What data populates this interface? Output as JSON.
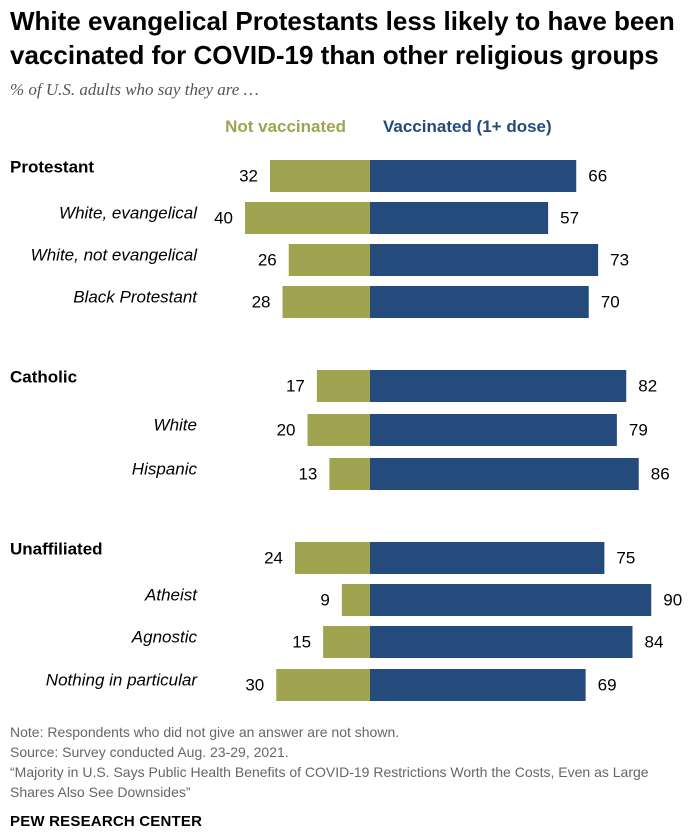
{
  "header": {
    "title": "White evangelical Protestants less likely to have been vaccinated for COVID-19 than other religious groups",
    "subtitle": "% of U.S. adults who say they are …"
  },
  "legend": {
    "not_vaccinated": "Not vaccinated",
    "vaccinated": "Vaccinated (1+ dose)"
  },
  "colors": {
    "not_vaccinated": "#a0a451",
    "vaccinated": "#254a7c"
  },
  "chart_data": {
    "type": "bar",
    "orientation": "horizontal-diverging",
    "categories": [
      "Protestant",
      "White, evangelical",
      "White, not evangelical",
      "Black Protestant",
      "Catholic",
      "White",
      "Hispanic",
      "Unaffiliated",
      "Atheist",
      "Agnostic",
      "Nothing in particular"
    ],
    "category_style": [
      "group",
      "sub",
      "sub",
      "sub",
      "group",
      "sub",
      "sub",
      "group",
      "sub",
      "sub",
      "sub"
    ],
    "series": [
      {
        "name": "Not vaccinated",
        "values": [
          32,
          40,
          26,
          28,
          17,
          20,
          13,
          24,
          9,
          15,
          30
        ]
      },
      {
        "name": "Vaccinated (1+ dose)",
        "values": [
          66,
          57,
          73,
          70,
          82,
          79,
          86,
          75,
          90,
          84,
          69
        ]
      }
    ],
    "title": "White evangelical Protestants less likely to have been vaccinated for COVID-19 than other religious groups",
    "units": "%",
    "grid": false,
    "legend_position": "top"
  },
  "notes": {
    "note": "Note: Respondents who did not give an answer are not shown.",
    "source": "Source: Survey conducted Aug. 23-29, 2021.",
    "report": "“Majority in U.S. Says Public Health Benefits of COVID-19 Restrictions Worth the Costs, Even as Large Shares Also See Downsides”"
  },
  "brand": "PEW RESEARCH CENTER"
}
